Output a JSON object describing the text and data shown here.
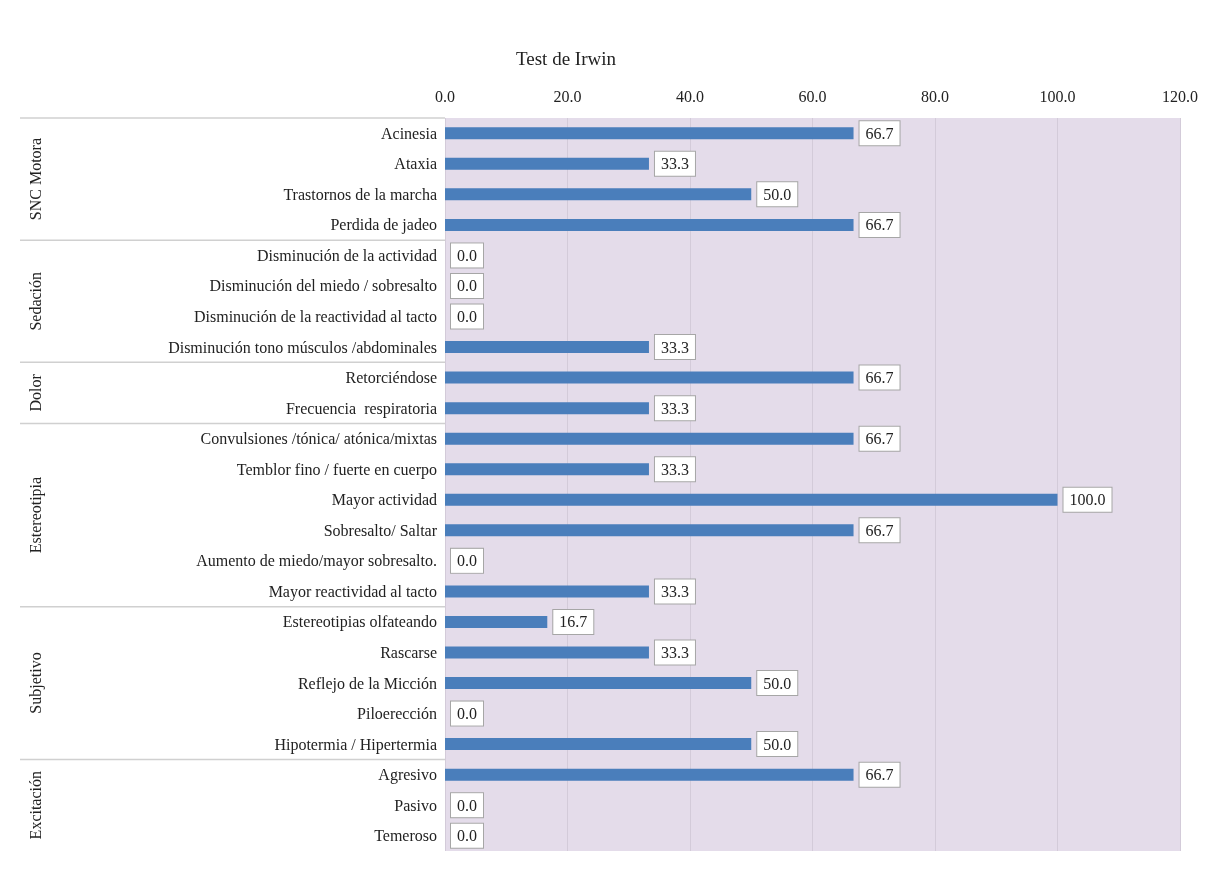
{
  "chart_data": {
    "type": "bar",
    "orientation": "horizontal",
    "title": "Test de Irwin",
    "categories": [
      "Acinesia",
      "Ataxia",
      "Trastornos de la marcha",
      "Perdida de jadeo",
      "Disminución de la actividad",
      "Disminución del miedo / sobresalto",
      "Disminución de la reactividad al tacto",
      "Disminución tono músculos /abdominales",
      "Retorciéndose",
      "Frecuencia  respiratoria",
      "Convulsiones /tónica/ atónica/mixtas",
      "Temblor fino / fuerte en cuerpo",
      "Mayor actividad",
      "Sobresalto/ Saltar",
      "Aumento de miedo/mayor sobresalto.",
      "Mayor reactividad al tacto",
      "Estereotipias olfateando",
      "Rascarse",
      "Reflejo de la Micción",
      "Piloerección",
      "Hipotermia / Hipertermia",
      "Agresivo",
      "Pasivo",
      "Temeroso"
    ],
    "values": [
      66.7,
      33.3,
      50.0,
      66.7,
      0.0,
      0.0,
      0.0,
      33.3,
      66.7,
      33.3,
      66.7,
      33.3,
      100.0,
      66.7,
      0.0,
      33.3,
      16.7,
      33.3,
      50.0,
      0.0,
      50.0,
      66.7,
      0.0,
      0.0
    ],
    "value_labels": [
      "66.7",
      "33.3",
      "50.0",
      "66.7",
      "0.0",
      "0.0",
      "0.0",
      "33.3",
      "66.7",
      "33.3",
      "66.7",
      "33.3",
      "100.0",
      "66.7",
      "0.0",
      "33.3",
      "16.7",
      "33.3",
      "50.0",
      "0.0",
      "50.0",
      "66.7",
      "0.0",
      "0.0"
    ],
    "color": "#4a7ebb",
    "xlim": [
      0,
      120
    ],
    "xticks": [
      {
        "value": 0,
        "label": "0.0"
      },
      {
        "value": 20,
        "label": "20.0"
      },
      {
        "value": 40,
        "label": "40.0"
      },
      {
        "value": 60,
        "label": "60.0"
      },
      {
        "value": 80,
        "label": "80.0"
      },
      {
        "value": 100,
        "label": "100.0"
      },
      {
        "value": 120,
        "label": "120.0"
      }
    ],
    "grid": "x",
    "annotations": [
      "SNC Motora",
      "Sedación",
      "Dolor",
      "Estereotipia",
      "Subjetivo",
      "Excitación"
    ]
  }
}
